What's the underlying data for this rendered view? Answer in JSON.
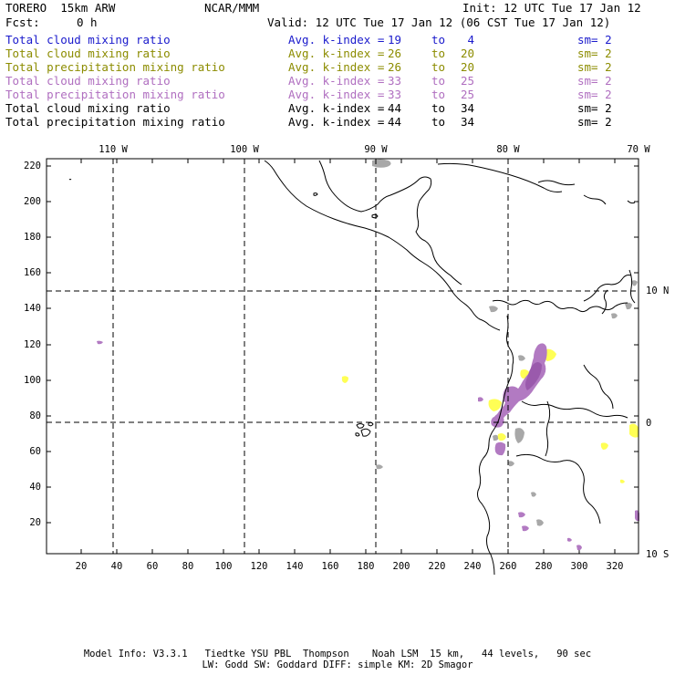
{
  "header": {
    "model": "TORERO  15km ARW",
    "org": "NCAR/MMM",
    "init": "Init: 12 UTC Tue 17 Jan 12",
    "fcst_label": "Fcst:",
    "fcst_value": "0 h",
    "valid": "Valid: 12 UTC Tue 17 Jan 12 (06 CST Tue 17 Jan 12)"
  },
  "legend": [
    {
      "field": "Total cloud mixing ratio",
      "avg": "Avg. k-index =",
      "hi": "19",
      "to": "to",
      "lo": "4",
      "sm": "sm= 2",
      "color": "#1a1acc"
    },
    {
      "field": "Total cloud mixing ratio",
      "avg": "Avg. k-index =",
      "hi": "26",
      "to": "to",
      "lo": "20",
      "sm": "sm= 2",
      "color": "#8c8c00"
    },
    {
      "field": "Total precipitation mixing ratio",
      "avg": "Avg. k-index =",
      "hi": "26",
      "to": "to",
      "lo": "20",
      "sm": "sm= 2",
      "color": "#8c8c00"
    },
    {
      "field": "Total cloud mixing ratio",
      "avg": "Avg. k-index =",
      "hi": "33",
      "to": "to",
      "lo": "25",
      "sm": "sm= 2",
      "color": "#b06fc0"
    },
    {
      "field": "Total precipitation mixing ratio",
      "avg": "Avg. k-index =",
      "hi": "33",
      "to": "to",
      "lo": "25",
      "sm": "sm= 2",
      "color": "#b06fc0"
    },
    {
      "field": "Total cloud mixing ratio",
      "avg": "Avg. k-index =",
      "hi": "44",
      "to": "to",
      "lo": "34",
      "sm": "sm= 2",
      "color": "#000000"
    },
    {
      "field": "Total precipitation mixing ratio",
      "avg": "Avg. k-index =",
      "hi": "44",
      "to": "to",
      "lo": "34",
      "sm": "sm= 2",
      "color": "#000000"
    }
  ],
  "map": {
    "lon_labels": [
      "110 W",
      "100 W",
      "90 W",
      "80 W",
      "70 W"
    ],
    "lat_labels": [
      "10 N",
      "0",
      "10 S"
    ],
    "y_ticks": [
      "220",
      "200",
      "180",
      "160",
      "140",
      "120",
      "100",
      "80",
      "60",
      "40",
      "20"
    ],
    "x_ticks": [
      "20",
      "40",
      "60",
      "80",
      "100",
      "120",
      "140",
      "160",
      "180",
      "200",
      "220",
      "240",
      "260",
      "280",
      "300",
      "320"
    ],
    "colors": {
      "coast": "#000000",
      "grid": "#000000",
      "yellow_fill": "#ffff55",
      "purple_fill": "#b27ac2",
      "dark_purple_fill": "#9a5aac",
      "grey_fill": "#a8a8a8"
    }
  },
  "footer": {
    "line1": "Model Info: V3.3.1   Tiedtke YSU PBL  Thompson    Noah LSM  15 km,   44 levels,   90 sec",
    "line2": "LW: Godd SW: Goddard DIFF: simple KM: 2D Smagor"
  }
}
